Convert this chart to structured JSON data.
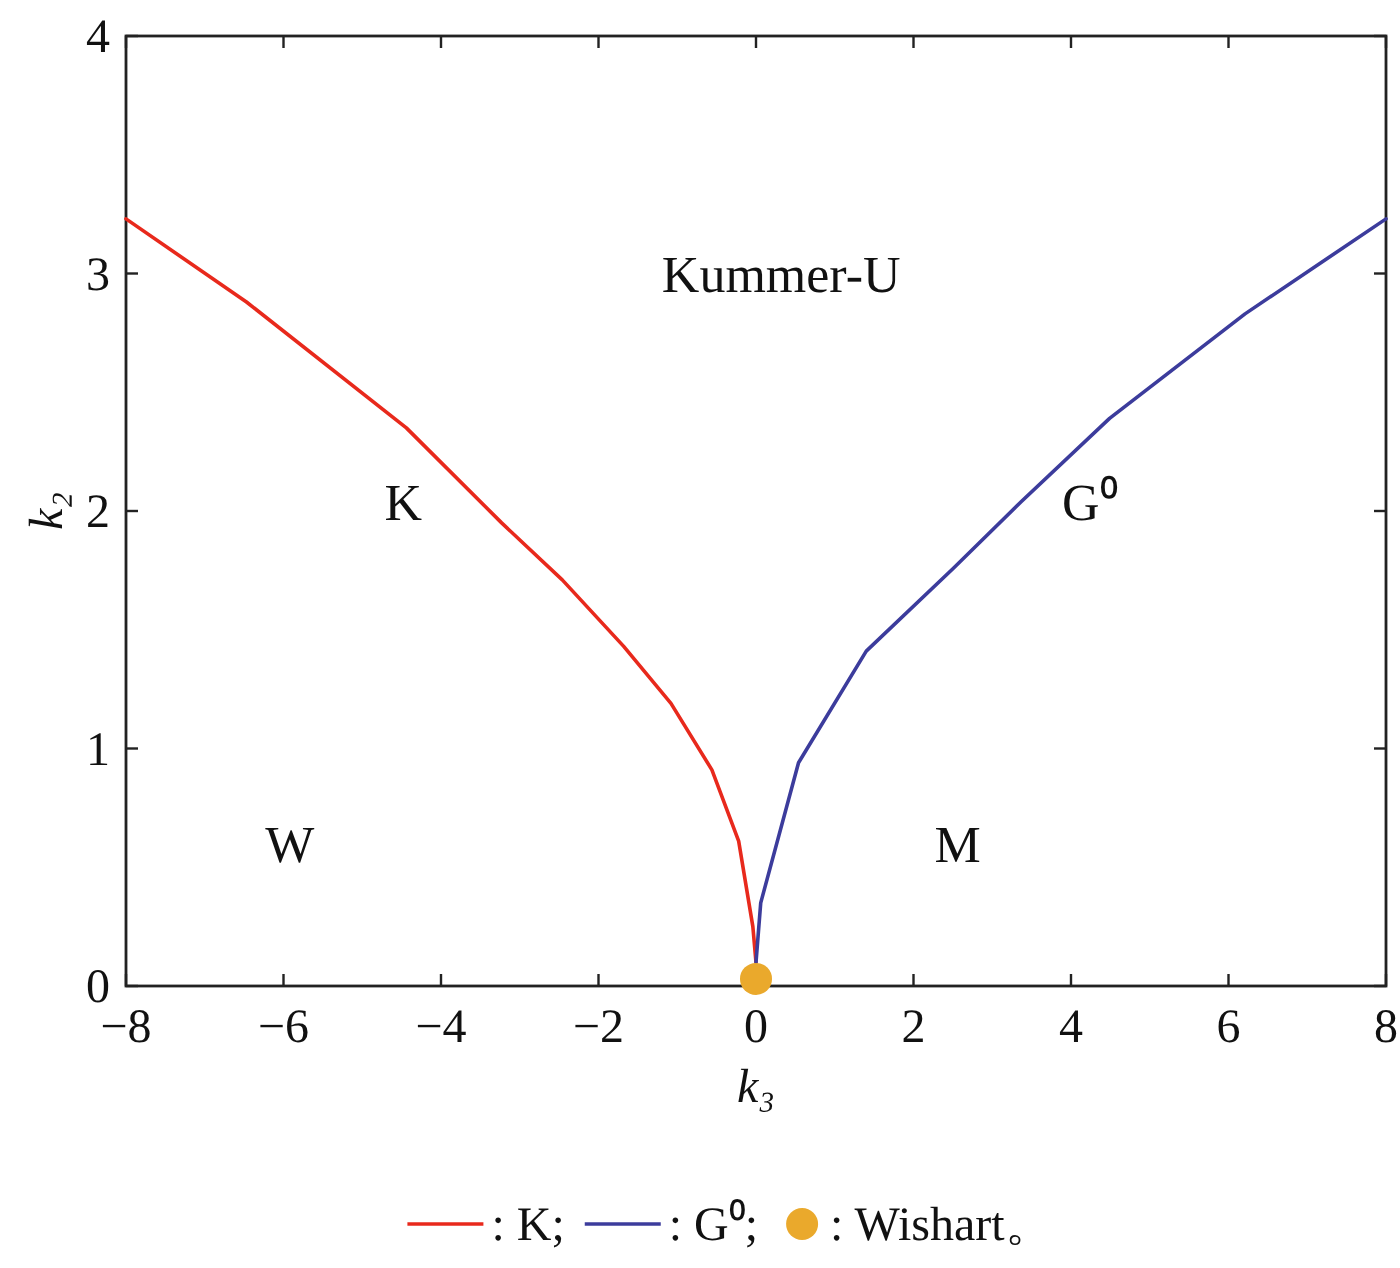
{
  "chart_data": {
    "type": "line",
    "xlabel": "k₃",
    "ylabel": "k₂",
    "xlim": [
      -8,
      8
    ],
    "ylim": [
      0,
      4
    ],
    "xticks": [
      -8,
      -6,
      -4,
      -2,
      0,
      2,
      4,
      6,
      8
    ],
    "yticks": [
      0,
      1,
      2,
      3,
      4
    ],
    "grid": false,
    "legend": "bottom",
    "series": [
      {
        "name": ": K;",
        "color": "#e8291c",
        "marker": "none",
        "x": [
          -8,
          -6.47,
          -4.44,
          -3.23,
          -2.46,
          -1.68,
          -1.08,
          -0.56,
          -0.22,
          -0.04,
          0
        ],
        "values": [
          3.23,
          2.88,
          2.35,
          1.95,
          1.71,
          1.43,
          1.19,
          0.91,
          0.61,
          0.25,
          0.1
        ]
      },
      {
        "name": ": G⁰;",
        "color": "#3c3c9c",
        "marker": "none",
        "x": [
          0,
          0.06,
          0.54,
          1.4,
          2.51,
          3.37,
          4.49,
          6.21,
          8
        ],
        "values": [
          0.1,
          0.35,
          0.94,
          1.41,
          1.76,
          2.04,
          2.39,
          2.83,
          3.23
        ]
      },
      {
        "name": ": Wishart。",
        "color": "#eaa92c",
        "type": "scatter",
        "marker": "circle",
        "x": [
          0
        ],
        "values": [
          0.03
        ]
      }
    ],
    "annotations": [
      "Kummer-U",
      "K",
      "G⁰",
      "W",
      "M"
    ]
  }
}
